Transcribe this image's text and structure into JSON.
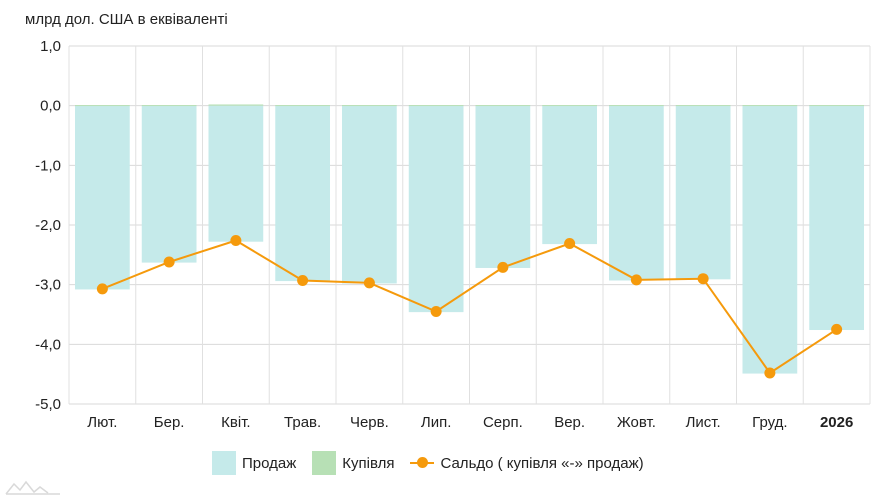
{
  "chart_data": {
    "type": "bar+line",
    "unit_label": "млрд дол. США в еквіваленті",
    "categories": [
      "Лют.",
      "Бер.",
      "Квіт.",
      "Трав.",
      "Черв.",
      "Лип.",
      "Серп.",
      "Вер.",
      "Жовт.",
      "Лист.",
      "Груд.",
      "2026"
    ],
    "bold_categories": [
      "2026"
    ],
    "series": [
      {
        "name": "Продаж",
        "kind": "bar",
        "color": "#c5eaea",
        "values": [
          -3.08,
          -2.63,
          -2.28,
          -2.94,
          -2.98,
          -3.46,
          -2.72,
          -2.32,
          -2.93,
          -2.91,
          -4.49,
          -3.76
        ]
      },
      {
        "name": "Купівля",
        "kind": "bar",
        "color": "#b7e0b5",
        "values": [
          0.01,
          0.01,
          0.02,
          0.01,
          0.01,
          0.01,
          0.01,
          0.01,
          0.01,
          0.01,
          0.01,
          0.01
        ]
      },
      {
        "name": "Сальдо ( купівля «-» продаж)",
        "kind": "line",
        "color": "#f59a0c",
        "values": [
          -3.07,
          -2.62,
          -2.26,
          -2.93,
          -2.97,
          -3.45,
          -2.71,
          -2.31,
          -2.92,
          -2.9,
          -4.48,
          -3.75
        ]
      }
    ],
    "y_ticks": [
      "1,0",
      "0,0",
      "-1,0",
      "-2,0",
      "-3,0",
      "-4,0",
      "-5,0"
    ],
    "ylim": [
      -5,
      1
    ],
    "grid": true,
    "legend_position": "bottom"
  }
}
